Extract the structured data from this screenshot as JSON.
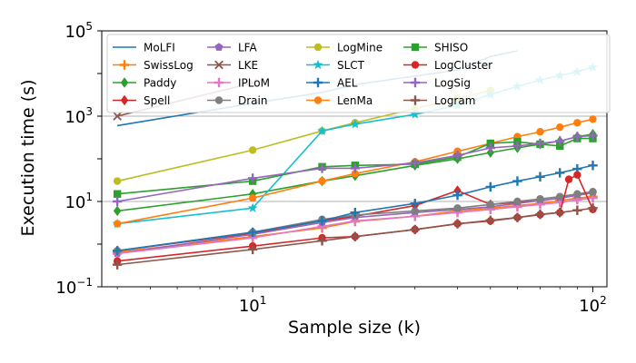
{
  "chart_data": {
    "type": "line",
    "title": "",
    "xlabel": "Sample size (k)",
    "ylabel": "Execution time (s)",
    "xscale": "log",
    "yscale": "log",
    "xlim": [
      3.6,
      110
    ],
    "ylim": [
      0.1,
      100000
    ],
    "grid": "y-major",
    "legend": "top, inside, 5 columns",
    "x_ticks": [
      {
        "value": 10,
        "base": "10",
        "exp": "1"
      },
      {
        "value": 100,
        "base": "10",
        "exp": "2"
      }
    ],
    "y_ticks": [
      {
        "value": 0.1,
        "base": "10",
        "exp": "−1"
      },
      {
        "value": 10,
        "base": "10",
        "exp": "1"
      },
      {
        "value": 1000,
        "base": "10",
        "exp": "3"
      },
      {
        "value": 100000,
        "base": "10",
        "exp": "5"
      }
    ],
    "series": [
      {
        "name": "MoLFI",
        "color": "#1f77b4",
        "marker": "none",
        "x": [
          4,
          10,
          16,
          20,
          40,
          50,
          60
        ],
        "y": [
          600,
          2000,
          3600,
          5500,
          12000,
          25000,
          34000
        ]
      },
      {
        "name": "SwissLog",
        "color": "#ff7f0e",
        "marker": "plus",
        "x": [
          4,
          10,
          16,
          20,
          30,
          40,
          50,
          60,
          70,
          80,
          90,
          100
        ],
        "y": [
          0.65,
          1.5,
          2.4,
          3.4,
          4.5,
          6,
          7,
          8,
          9,
          10.5,
          12,
          13
        ]
      },
      {
        "name": "Paddy",
        "color": "#2ca02c",
        "marker": "diamond",
        "x": [
          4,
          10,
          16,
          20,
          30,
          40,
          50,
          60,
          70,
          80,
          90,
          100
        ],
        "y": [
          6,
          15,
          30,
          40,
          70,
          100,
          140,
          180,
          220,
          260,
          330,
          380
        ]
      },
      {
        "name": "Spell",
        "color": "#d62728",
        "marker": "diamond",
        "x": [
          4,
          10,
          16,
          20,
          30,
          40,
          50,
          60,
          70,
          80,
          90,
          100
        ],
        "y": [
          0.7,
          1.8,
          3.5,
          4.5,
          8,
          18,
          8.5,
          9.5,
          10.5,
          12,
          14,
          16
        ]
      },
      {
        "name": "LFA",
        "color": "#9467bd",
        "marker": "pentagon",
        "x": [
          4,
          10,
          16,
          20,
          30,
          40,
          50,
          60,
          70,
          80,
          90,
          100
        ],
        "y": [
          0.6,
          1.7,
          3.2,
          4.2,
          5.5,
          6.5,
          7.5,
          9,
          10.5,
          12,
          14,
          16
        ]
      },
      {
        "name": "LKE",
        "color": "#8c564b",
        "marker": "x",
        "x": [
          4,
          10
        ],
        "y": [
          1000,
          6000
        ]
      },
      {
        "name": "IPLoM",
        "color": "#e377c2",
        "marker": "plus",
        "x": [
          4,
          10,
          16,
          20,
          30,
          40,
          50,
          60,
          70,
          80,
          90,
          100
        ],
        "y": [
          0.6,
          1.4,
          2.6,
          3.5,
          4.5,
          5.5,
          6.5,
          7.5,
          8.5,
          9.5,
          11,
          12
        ]
      },
      {
        "name": "Drain",
        "color": "#7f7f7f",
        "marker": "circle",
        "x": [
          4,
          10,
          16,
          20,
          30,
          40,
          50,
          60,
          70,
          80,
          90,
          100
        ],
        "y": [
          0.7,
          1.9,
          3.8,
          4.8,
          6,
          7,
          8.5,
          10,
          11.5,
          13,
          15,
          17
        ]
      },
      {
        "name": "LogMine",
        "color": "#bcbd22",
        "marker": "circle",
        "x": [
          4,
          10,
          16,
          20,
          30,
          40,
          50
        ],
        "y": [
          30,
          160,
          450,
          700,
          1500,
          2600,
          4000
        ]
      },
      {
        "name": "SLCT",
        "color": "#17becf",
        "marker": "star",
        "x": [
          4,
          10,
          16,
          20,
          30,
          40,
          50,
          60,
          70,
          80,
          90,
          100
        ],
        "y": [
          3,
          7,
          450,
          650,
          1100,
          1800,
          3200,
          5000,
          7000,
          9000,
          11000,
          14000
        ]
      },
      {
        "name": "AEL",
        "color": "#1f77b4",
        "marker": "plus",
        "x": [
          4,
          10,
          16,
          20,
          30,
          40,
          50,
          60,
          70,
          80,
          90,
          100
        ],
        "y": [
          0.7,
          1.9,
          3.5,
          5.5,
          9,
          14,
          22,
          30,
          38,
          47,
          58,
          70
        ]
      },
      {
        "name": "LenMa",
        "color": "#ff7f0e",
        "marker": "circle",
        "x": [
          4,
          10,
          16,
          20,
          30,
          40,
          50,
          60,
          70,
          80,
          90,
          100
        ],
        "y": [
          3,
          12,
          30,
          45,
          85,
          150,
          230,
          330,
          430,
          550,
          700,
          850
        ]
      },
      {
        "name": "SHISO",
        "color": "#2ca02c",
        "marker": "square",
        "x": [
          4,
          10,
          16,
          20,
          30,
          40,
          50,
          60,
          70,
          80,
          90,
          100
        ],
        "y": [
          15,
          30,
          65,
          70,
          75,
          110,
          230,
          250,
          220,
          200,
          300,
          300
        ]
      },
      {
        "name": "LogCluster",
        "color": "#d62728",
        "marker": "circle",
        "x": [
          4,
          10,
          16,
          20,
          30,
          40,
          50,
          60,
          70,
          80,
          85,
          90,
          100
        ],
        "y": [
          0.4,
          0.9,
          1.4,
          1.5,
          2.2,
          3,
          3.5,
          4.2,
          4.9,
          5.5,
          33,
          42,
          6.5
        ]
      },
      {
        "name": "LogSig",
        "color": "#9467bd",
        "marker": "plus",
        "x": [
          4,
          10,
          16,
          20,
          30,
          40,
          50,
          60,
          70,
          80,
          90,
          100
        ],
        "y": [
          10,
          35,
          60,
          60,
          80,
          120,
          180,
          200,
          230,
          260,
          330,
          350
        ]
      },
      {
        "name": "Logram",
        "color": "#8c564b",
        "marker": "plus",
        "x": [
          4,
          10,
          16,
          20,
          30,
          40,
          50,
          60,
          70,
          80,
          90,
          100
        ],
        "y": [
          0.33,
          0.75,
          1.2,
          1.5,
          2.2,
          3,
          3.6,
          4.2,
          5,
          5.5,
          6.2,
          7
        ]
      }
    ]
  }
}
